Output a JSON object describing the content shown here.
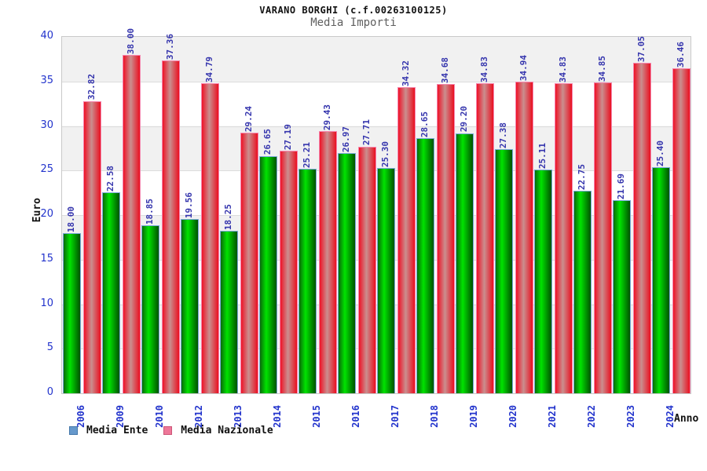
{
  "header": {
    "title": "VARANO BORGHI (c.f.00263100125)",
    "subtitle": "Media Importi"
  },
  "chart_data": {
    "type": "bar",
    "title": "VARANO BORGHI (c.f.00263100125)",
    "subtitle": "Media Importi",
    "xlabel": "Anno",
    "ylabel": "Euro",
    "ylim": [
      0,
      40
    ],
    "yticks": [
      0,
      5,
      10,
      15,
      20,
      25,
      30,
      35,
      40
    ],
    "grid": "horizontal-bands-alternating",
    "legend_position": "bottom-left",
    "value_labels": "rotated-90-above-bars, two decimals",
    "categories": [
      "2006",
      "2009",
      "2010",
      "2012",
      "2013",
      "2014",
      "2015",
      "2016",
      "2017",
      "2018",
      "2019",
      "2020",
      "2021",
      "2022",
      "2023",
      "2024"
    ],
    "series": [
      {
        "name": "Media Ente",
        "legend_color": "#6699cc",
        "bar_gradient": [
          "#0a6a0a",
          "#00e300",
          "#005200"
        ],
        "bar_border_color": "#79a8d8",
        "values": [
          18.0,
          22.58,
          18.85,
          19.56,
          18.25,
          26.65,
          25.21,
          26.97,
          25.3,
          28.65,
          29.2,
          27.38,
          25.11,
          22.75,
          21.69,
          25.4
        ]
      },
      {
        "name": "Media Nazionale",
        "legend_color": "#ee7799",
        "bar_gradient": [
          "#ef1226",
          "#ca8f8f",
          "#ea0f20"
        ],
        "bar_border_color": "#f585ad",
        "values": [
          32.82,
          38.0,
          37.36,
          34.79,
          29.24,
          27.19,
          29.43,
          27.71,
          34.32,
          34.68,
          34.83,
          34.94,
          34.83,
          34.85,
          37.05,
          36.46
        ]
      }
    ],
    "colors": {
      "axis_tick_text": "#2233cc",
      "value_label_text": "#3535ad",
      "band_gray": "#f1f1f1",
      "band_white": "#ffffff",
      "plot_border": "#c9c9c9"
    }
  }
}
